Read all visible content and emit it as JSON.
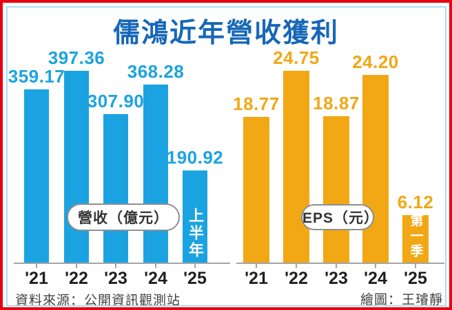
{
  "title": "儒鴻近年營收獲利",
  "colors": {
    "frame_red": "#e60012",
    "inner_line_cyan": "#aadff2",
    "title_blue": "#1667b8",
    "bar_blue": "#1ba3e1",
    "bar_yellow": "#f2a715",
    "axis_gray": "#a3a3a3"
  },
  "chart_data": [
    {
      "type": "bar",
      "name": "revenue",
      "unit_label": "營收（億元）",
      "categories": [
        "'21",
        "'22",
        "'23",
        "'24",
        "'25"
      ],
      "values": [
        359.17,
        397.36,
        307.9,
        368.28,
        190.92
      ],
      "last_bar_tag": "上半年",
      "ylim": [
        0,
        400
      ],
      "legend_position": "inside-bottom",
      "grid": false
    },
    {
      "type": "bar",
      "name": "eps",
      "unit_label": "EPS（元）",
      "categories": [
        "'21",
        "'22",
        "'23",
        "'24",
        "'25"
      ],
      "values": [
        18.77,
        24.75,
        18.87,
        24.2,
        6.12
      ],
      "last_bar_tag": "第一季",
      "ylim": [
        0,
        25
      ],
      "legend_position": "inside-bottom",
      "grid": false
    }
  ],
  "footer": {
    "source": "資料來源：公開資訊觀測站",
    "credit": "繪圖：王璿靜"
  }
}
